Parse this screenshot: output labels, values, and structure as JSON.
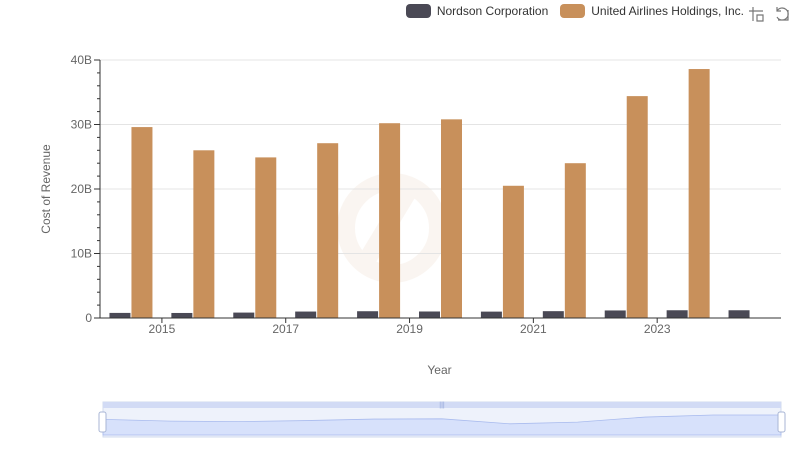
{
  "legend": {
    "items": [
      {
        "label": "Nordson Corporation",
        "color": "#4a4955"
      },
      {
        "label": "United Airlines Holdings, Inc.",
        "color": "#c8905b"
      }
    ]
  },
  "toolbox": {
    "icons": [
      "zoom-icon",
      "zoom-reset-icon"
    ]
  },
  "chart_data": {
    "type": "bar",
    "categories": [
      "2014",
      "2015",
      "2016",
      "2017",
      "2018",
      "2019",
      "2020",
      "2021",
      "2022",
      "2023",
      "2024"
    ],
    "x_tick_labels": [
      "2015",
      "2017",
      "2019",
      "2021",
      "2023"
    ],
    "xlabel": "Year",
    "ylabel": "Cost of Revenue",
    "ylim": [
      0,
      40000000000
    ],
    "y_ticks": [
      {
        "value": 0,
        "label": "0"
      },
      {
        "value": 10000000000,
        "label": "10B"
      },
      {
        "value": 20000000000,
        "label": "20B"
      },
      {
        "value": 30000000000,
        "label": "30B"
      },
      {
        "value": 40000000000,
        "label": "40B"
      }
    ],
    "grid": true,
    "legend_position": "top-right",
    "series": [
      {
        "name": "Nordson Corporation",
        "color": "#4a4955",
        "values": [
          790000000,
          780000000,
          840000000,
          1000000000,
          1050000000,
          1010000000,
          990000000,
          1060000000,
          1170000000,
          1200000000,
          1200000000
        ]
      },
      {
        "name": "United Airlines Holdings, Inc.",
        "color": "#c8905b",
        "values": [
          29600000000,
          26000000000,
          24900000000,
          27100000000,
          30200000000,
          30800000000,
          20500000000,
          24000000000,
          34400000000,
          38600000000,
          null
        ]
      }
    ]
  },
  "data_zoom": {
    "start_percent": 0,
    "end_percent": 100
  }
}
